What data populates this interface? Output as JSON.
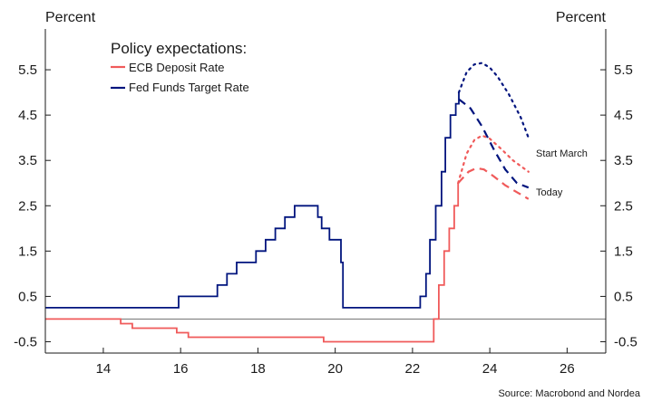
{
  "chart_data": {
    "type": "line",
    "left_unit": "Percent",
    "right_unit": "Percent",
    "legend_title": "Policy expectations:",
    "source": "Source: Macrobond and Nordea",
    "x_ticks": [
      "14",
      "16",
      "18",
      "20",
      "22",
      "24",
      "26"
    ],
    "x_tick_values": [
      14,
      16,
      18,
      20,
      22,
      24,
      26
    ],
    "y_ticks": [
      "5.5",
      "4.5",
      "3.5",
      "2.5",
      "1.5",
      "0.5",
      "-0.5"
    ],
    "y_tick_values": [
      5.5,
      4.5,
      3.5,
      2.5,
      1.5,
      0.5,
      -0.5
    ],
    "xlim": [
      12.5,
      27.0
    ],
    "ylim": [
      -0.75,
      6.4
    ],
    "zero_line": 0,
    "legend_position": "top-left",
    "colors": {
      "ecb": "#f05a5a",
      "fed": "#00147e",
      "zero_line": "#808080",
      "axis": "#1a1a1a"
    },
    "series": [
      {
        "name": "ECB Deposit Rate",
        "color": "#f05a5a",
        "style": "solid",
        "points": [
          [
            12.5,
            0.0
          ],
          [
            14.45,
            0.0
          ],
          [
            14.45,
            -0.1
          ],
          [
            14.75,
            -0.1
          ],
          [
            14.75,
            -0.2
          ],
          [
            15.9,
            -0.2
          ],
          [
            15.9,
            -0.3
          ],
          [
            16.2,
            -0.3
          ],
          [
            16.2,
            -0.4
          ],
          [
            19.7,
            -0.4
          ],
          [
            19.7,
            -0.5
          ],
          [
            22.55,
            -0.5
          ],
          [
            22.55,
            0.0
          ],
          [
            22.68,
            0.0
          ],
          [
            22.68,
            0.75
          ],
          [
            22.82,
            0.75
          ],
          [
            22.82,
            1.5
          ],
          [
            22.95,
            1.5
          ],
          [
            22.95,
            2.0
          ],
          [
            23.08,
            2.0
          ],
          [
            23.08,
            2.5
          ],
          [
            23.18,
            2.5
          ],
          [
            23.18,
            3.0
          ]
        ]
      },
      {
        "name": "Fed Funds Target Rate",
        "color": "#00147e",
        "style": "solid",
        "points": [
          [
            12.5,
            0.25
          ],
          [
            15.95,
            0.25
          ],
          [
            15.95,
            0.5
          ],
          [
            16.95,
            0.5
          ],
          [
            16.95,
            0.75
          ],
          [
            17.2,
            0.75
          ],
          [
            17.2,
            1.0
          ],
          [
            17.45,
            1.0
          ],
          [
            17.45,
            1.25
          ],
          [
            17.95,
            1.25
          ],
          [
            17.95,
            1.5
          ],
          [
            18.2,
            1.5
          ],
          [
            18.2,
            1.75
          ],
          [
            18.45,
            1.75
          ],
          [
            18.45,
            2.0
          ],
          [
            18.7,
            2.0
          ],
          [
            18.7,
            2.25
          ],
          [
            18.95,
            2.25
          ],
          [
            18.95,
            2.5
          ],
          [
            19.55,
            2.5
          ],
          [
            19.55,
            2.25
          ],
          [
            19.65,
            2.25
          ],
          [
            19.65,
            2.0
          ],
          [
            19.85,
            2.0
          ],
          [
            19.85,
            1.75
          ],
          [
            20.15,
            1.75
          ],
          [
            20.15,
            1.25
          ],
          [
            20.2,
            1.25
          ],
          [
            20.2,
            0.25
          ],
          [
            22.2,
            0.25
          ],
          [
            22.2,
            0.5
          ],
          [
            22.35,
            0.5
          ],
          [
            22.35,
            1.0
          ],
          [
            22.45,
            1.0
          ],
          [
            22.45,
            1.75
          ],
          [
            22.6,
            1.75
          ],
          [
            22.6,
            2.5
          ],
          [
            22.75,
            2.5
          ],
          [
            22.75,
            3.25
          ],
          [
            22.85,
            3.25
          ],
          [
            22.85,
            4.0
          ],
          [
            22.98,
            4.0
          ],
          [
            22.98,
            4.5
          ],
          [
            23.12,
            4.5
          ],
          [
            23.12,
            4.75
          ],
          [
            23.2,
            4.75
          ],
          [
            23.2,
            5.0
          ]
        ]
      },
      {
        "name": "Fed Funds Target Rate (Start March)",
        "color": "#00147e",
        "style": "dotted",
        "points": [
          [
            23.2,
            5.0
          ],
          [
            23.4,
            5.45
          ],
          [
            23.6,
            5.62
          ],
          [
            23.8,
            5.65
          ],
          [
            24.0,
            5.55
          ],
          [
            24.2,
            5.35
          ],
          [
            24.5,
            4.95
          ],
          [
            24.8,
            4.45
          ],
          [
            25.0,
            4.0
          ]
        ]
      },
      {
        "name": "Fed Funds Target Rate (Today)",
        "color": "#00147e",
        "style": "dashed",
        "points": [
          [
            23.2,
            4.85
          ],
          [
            23.5,
            4.65
          ],
          [
            23.8,
            4.25
          ],
          [
            24.1,
            3.75
          ],
          [
            24.4,
            3.3
          ],
          [
            24.7,
            3.0
          ],
          [
            25.0,
            2.9
          ]
        ]
      },
      {
        "name": "ECB Deposit Rate (Start March)",
        "color": "#f05a5a",
        "style": "dotted",
        "points": [
          [
            23.18,
            3.0
          ],
          [
            23.4,
            3.65
          ],
          [
            23.6,
            3.95
          ],
          [
            23.8,
            4.05
          ],
          [
            24.0,
            3.98
          ],
          [
            24.3,
            3.75
          ],
          [
            24.6,
            3.5
          ],
          [
            25.0,
            3.25
          ]
        ]
      },
      {
        "name": "ECB Deposit Rate (Today)",
        "color": "#f05a5a",
        "style": "dashed",
        "points": [
          [
            23.18,
            3.0
          ],
          [
            23.45,
            3.25
          ],
          [
            23.65,
            3.33
          ],
          [
            23.85,
            3.3
          ],
          [
            24.1,
            3.15
          ],
          [
            24.4,
            2.95
          ],
          [
            24.7,
            2.8
          ],
          [
            25.0,
            2.65
          ]
        ]
      }
    ],
    "legend": [
      {
        "label": "ECB Deposit Rate",
        "color": "#f05a5a"
      },
      {
        "label": "Fed Funds Target Rate",
        "color": "#00147e"
      }
    ],
    "annotations": [
      {
        "text": "Start March",
        "x": 25.1,
        "y": 3.5
      },
      {
        "text": "Today",
        "x": 25.1,
        "y": 2.7
      }
    ]
  }
}
